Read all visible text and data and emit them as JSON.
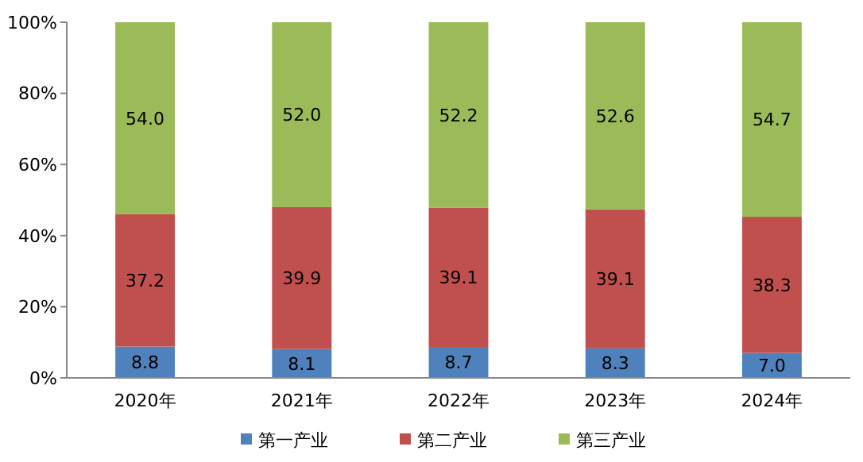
{
  "chart_data": {
    "type": "bar",
    "stacked": true,
    "categories": [
      "2020年",
      "2021年",
      "2022年",
      "2023年",
      "2024年"
    ],
    "series": [
      {
        "name": "第一产业",
        "color": "#4f81bd",
        "values": [
          8.8,
          8.1,
          8.7,
          8.3,
          7.0
        ],
        "value_labels": [
          "8.8",
          "8.1",
          "8.7",
          "8.3",
          "7.0"
        ]
      },
      {
        "name": "第二产业",
        "color": "#c0504d",
        "values": [
          37.2,
          39.9,
          39.1,
          39.1,
          38.3
        ],
        "value_labels": [
          "37.2",
          "39.9",
          "39.1",
          "39.1",
          "38.3"
        ]
      },
      {
        "name": "第三产业",
        "color": "#9bbb59",
        "values": [
          54.0,
          52.0,
          52.2,
          52.6,
          54.7
        ],
        "value_labels": [
          "54.0",
          "52.0",
          "52.2",
          "52.6",
          "54.7"
        ]
      }
    ],
    "ylim": [
      0,
      100
    ],
    "yticks": [
      {
        "value": 0,
        "label": "0%"
      },
      {
        "value": 20,
        "label": "20%"
      },
      {
        "value": 40,
        "label": "40%"
      },
      {
        "value": 60,
        "label": "60%"
      },
      {
        "value": 80,
        "label": "80%"
      },
      {
        "value": 100,
        "label": "100%"
      }
    ],
    "legend": "bottom",
    "grid": false
  }
}
